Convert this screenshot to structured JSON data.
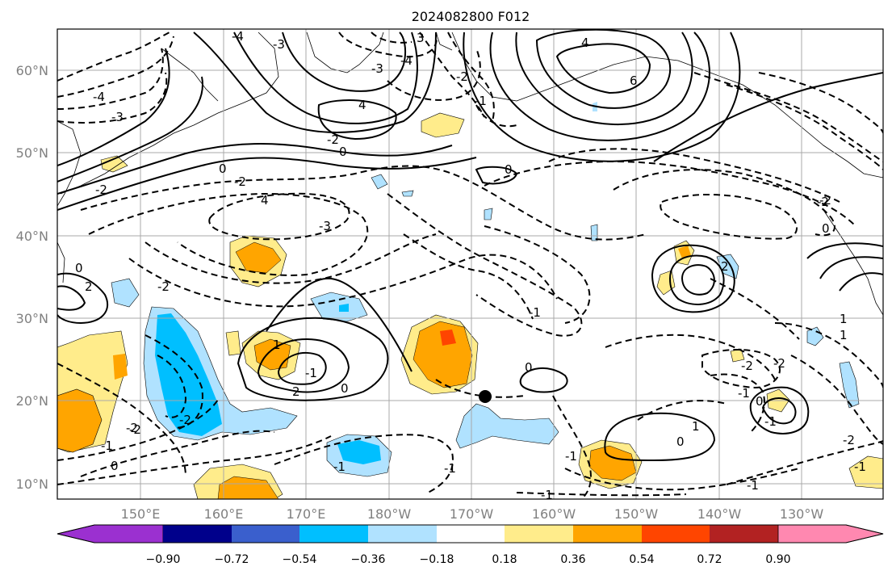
{
  "figure": {
    "title": "2024082800 F012"
  },
  "map": {
    "lat_labels": [
      "60°N",
      "50°N",
      "40°N",
      "30°N",
      "20°N",
      "10°N"
    ],
    "lon_labels": [
      "150°E",
      "160°E",
      "170°E",
      "180°W",
      "170°W",
      "160°W",
      "150°W",
      "140°W",
      "130°W"
    ],
    "contour_labels": [
      "-4",
      "-3",
      "-4",
      "3",
      "4",
      "-3",
      "6",
      "4",
      "-2",
      "-2",
      "-2",
      "-3",
      "4",
      "-2",
      "0",
      "-2",
      "-4",
      "-3",
      "0",
      "-2",
      "-1",
      "0",
      "2",
      "0",
      "2",
      "-1",
      "1",
      "0",
      "-2",
      "0",
      "2",
      "-2",
      "-1",
      "1",
      "-2",
      "0",
      "-1",
      "-2",
      "0",
      "-1",
      "-1",
      "1",
      "0",
      "-1",
      "-2",
      "-1",
      "0",
      "-1",
      "1",
      "-2",
      "-1",
      "-1",
      "-1",
      "-2"
    ]
  },
  "colorbar": {
    "ticks": [
      "−0.90",
      "−0.72",
      "−0.54",
      "−0.36",
      "−0.18",
      "0.18",
      "0.36",
      "0.54",
      "0.72",
      "0.90"
    ],
    "colors": [
      "#9b30d0",
      "#00008b",
      "#3a5fcd",
      "#00bfff",
      "#b0e2ff",
      "#ffffff",
      "#ffec8b",
      "#ffa500",
      "#ff4500",
      "#b22222",
      "#ff88b0"
    ]
  },
  "fill_colors": {
    "light_yellow": "#ffec8b",
    "orange": "#ffa500",
    "red_orange": "#ff4500",
    "light_blue": "#b0e2ff",
    "deep_sky_blue": "#00bfff"
  }
}
